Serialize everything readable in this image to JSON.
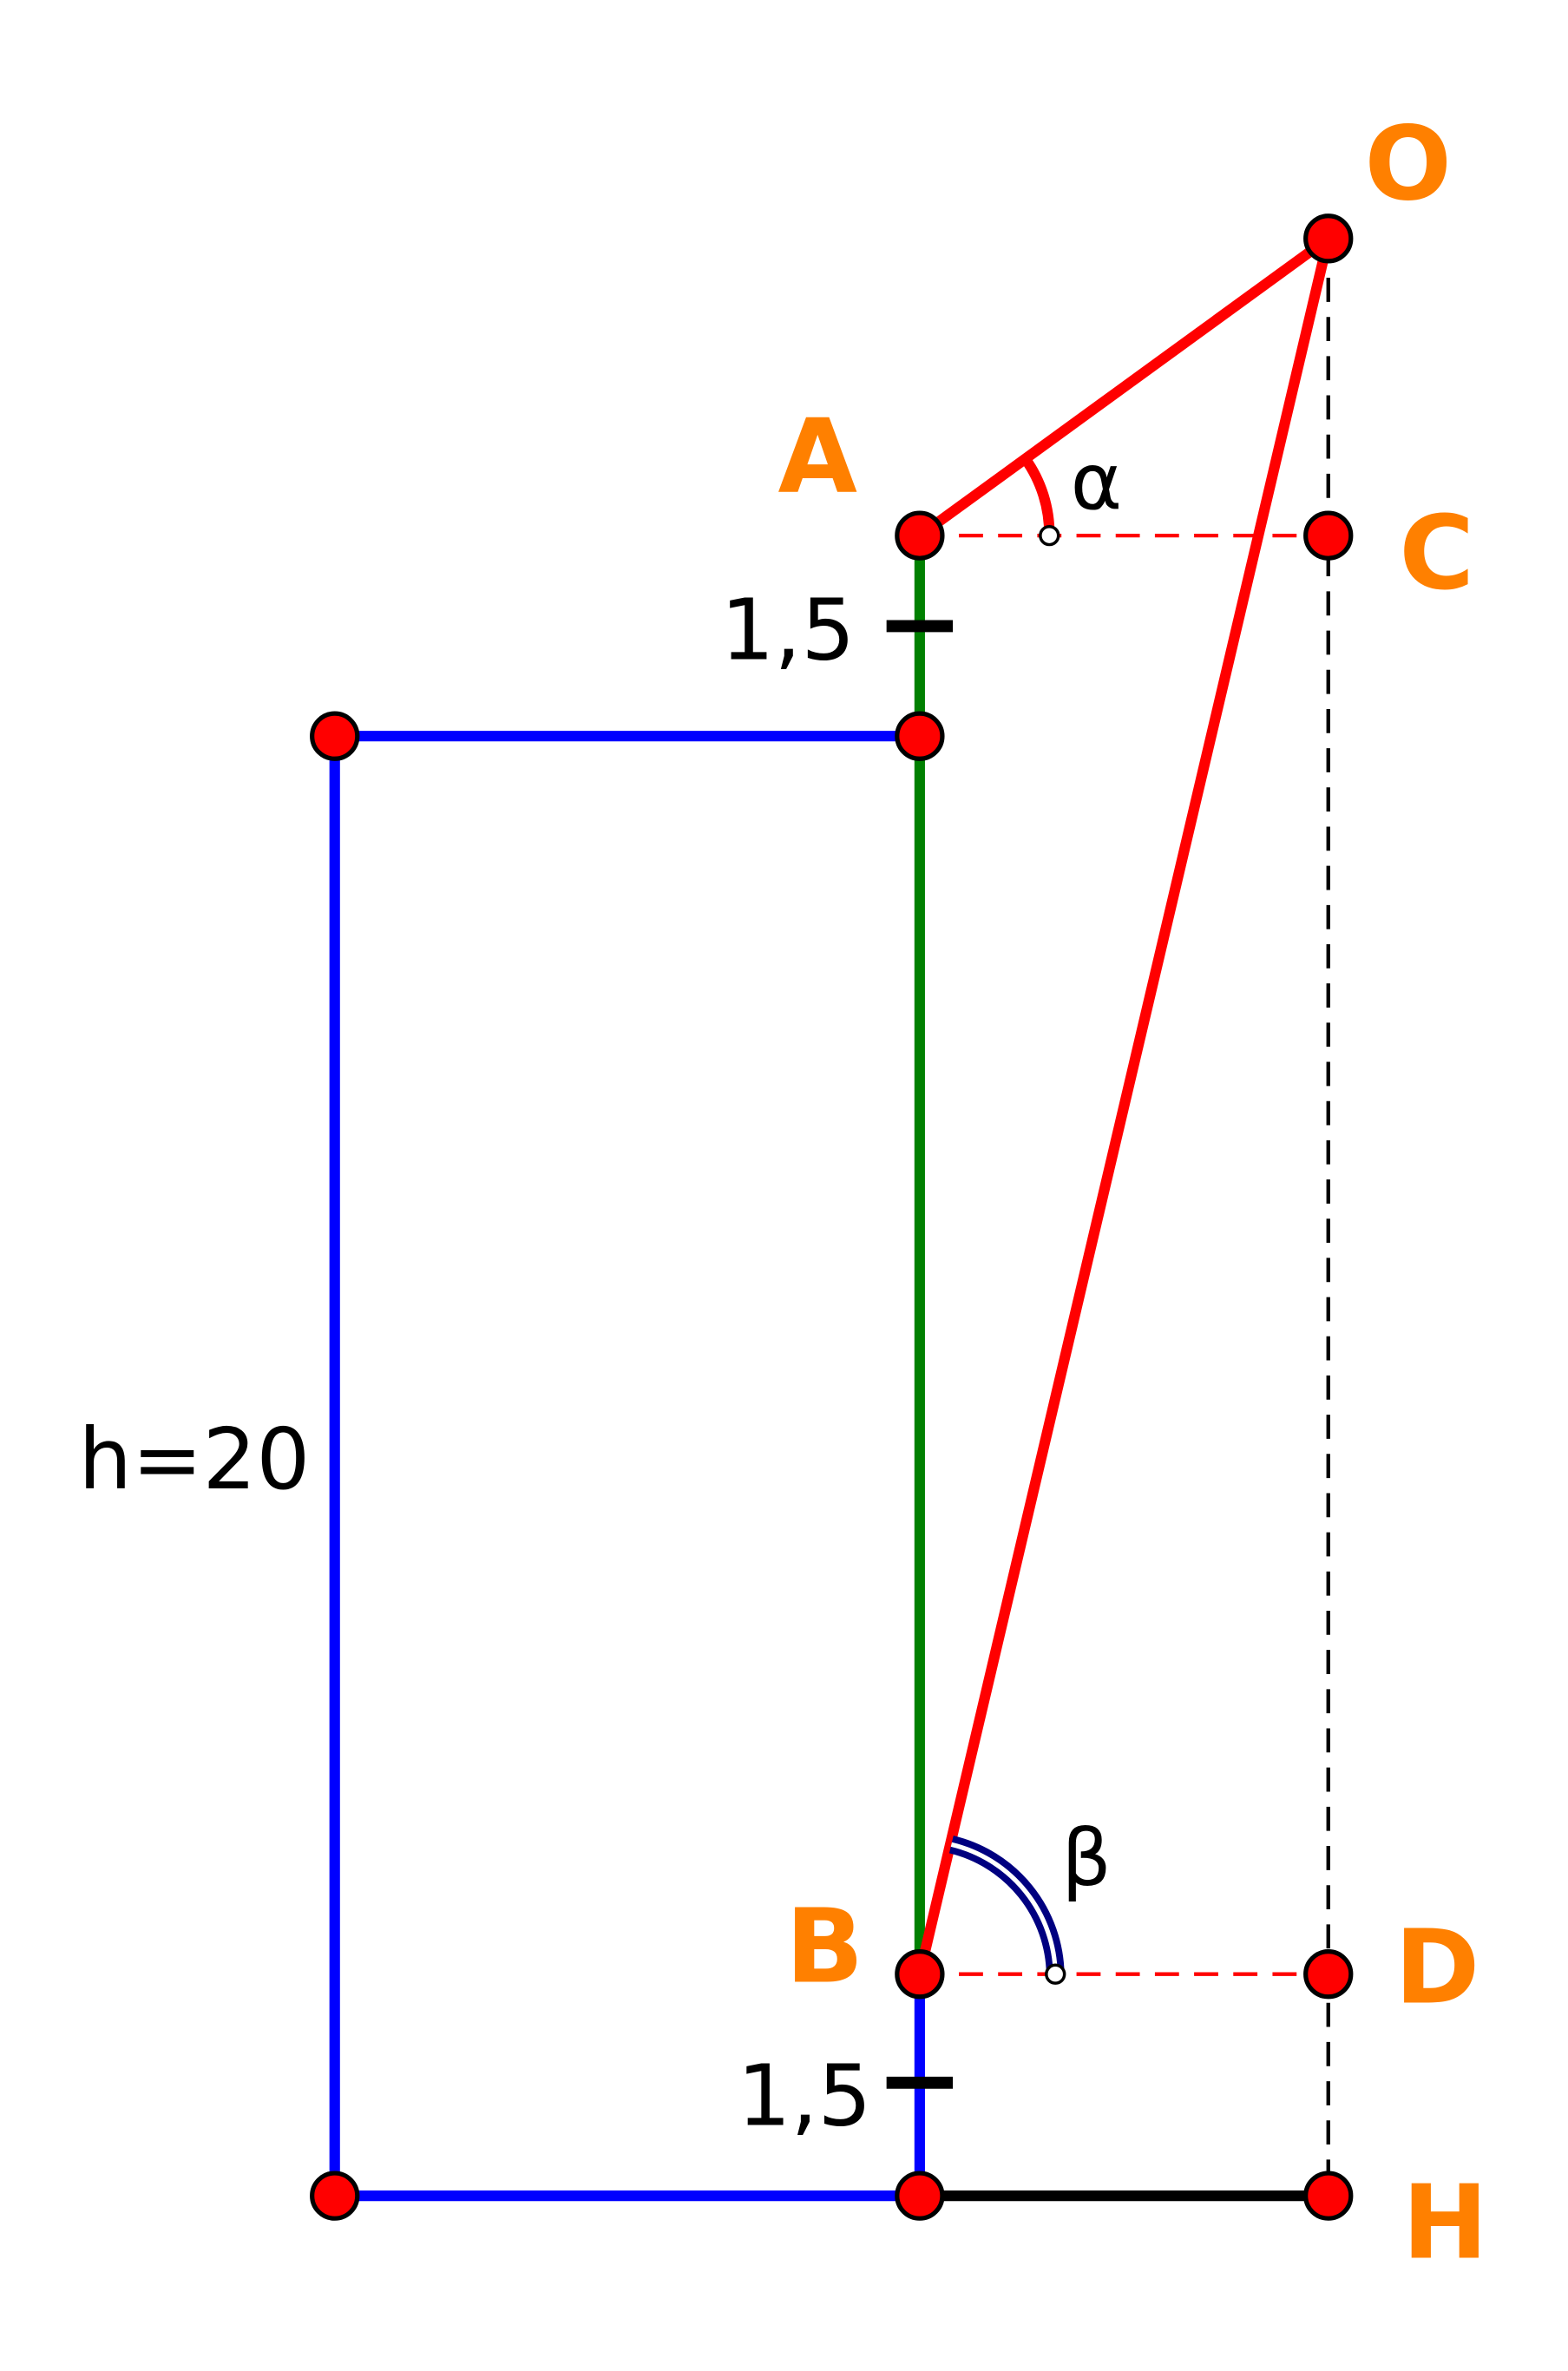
{
  "colors": {
    "building": "#0000ff",
    "ab_segment": "#008000",
    "sight_lines": "#ff0000",
    "beta_arc": "#000080",
    "point_fill": "#ff0000",
    "label": "#ff8000",
    "ground": "#000000"
  },
  "points": {
    "O": "O",
    "A": "A",
    "C": "C",
    "B": "B",
    "D": "D",
    "H": "H"
  },
  "angles": {
    "alpha": "α",
    "beta": "β"
  },
  "measurements": {
    "top_offset": "1,5",
    "bottom_offset": "1,5",
    "height": "h=20"
  }
}
